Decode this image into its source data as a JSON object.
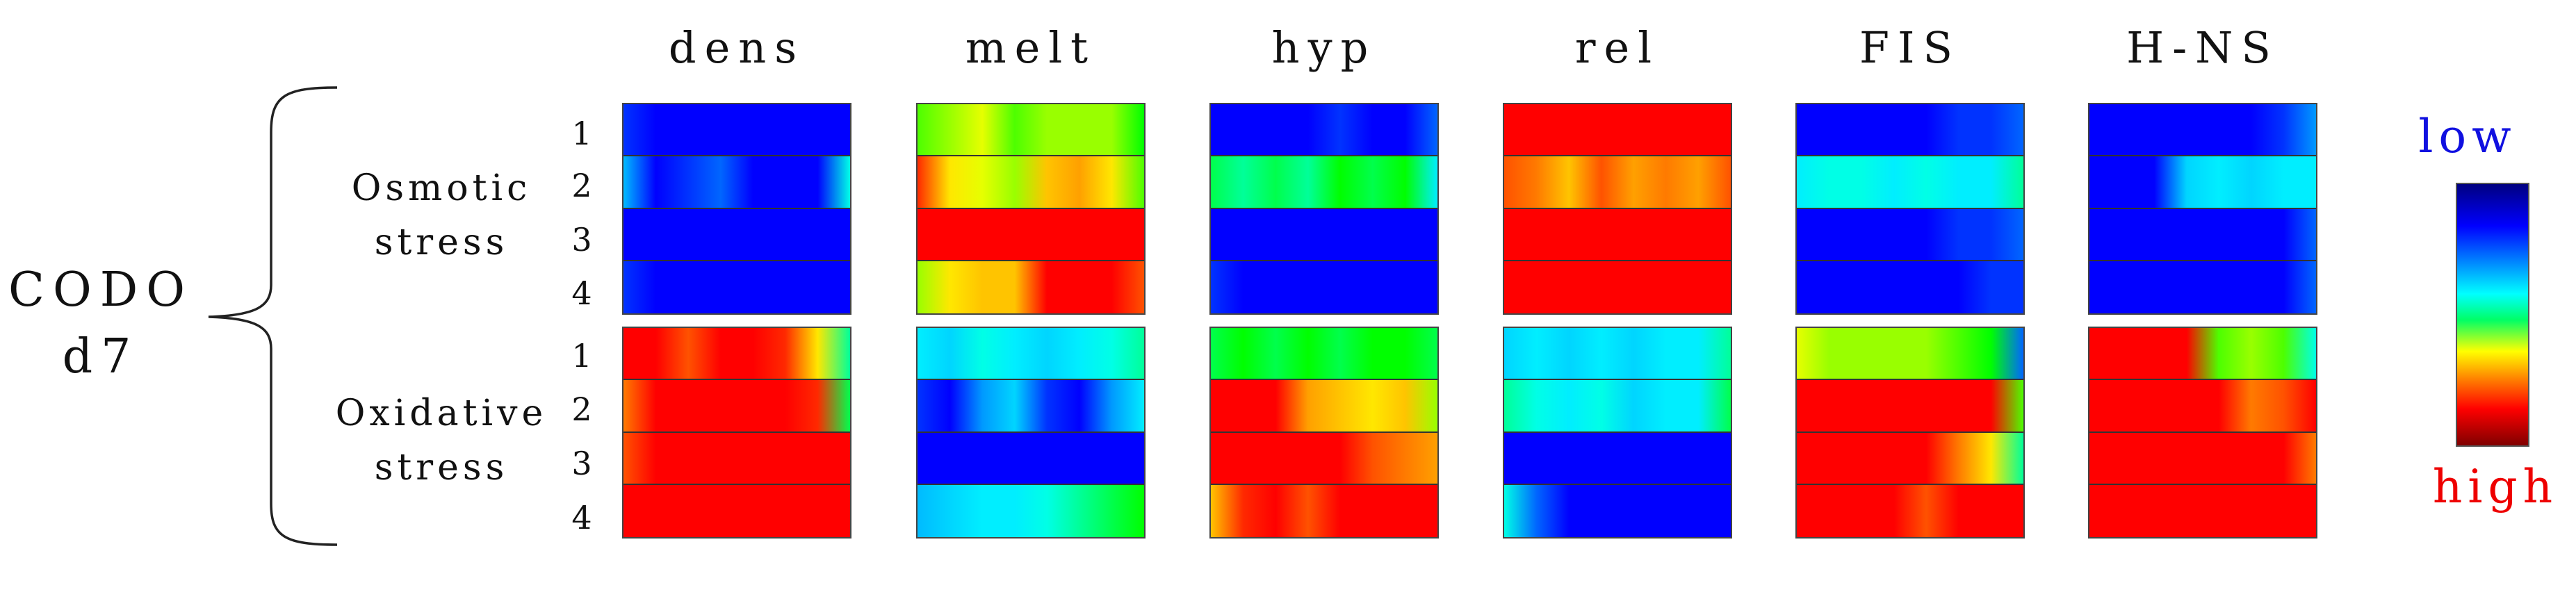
{
  "main_label": {
    "line1": "CODO",
    "line2": "d7"
  },
  "groups": [
    {
      "line1": "Osmotic",
      "line2": "stress"
    },
    {
      "line1": "Oxidative",
      "line2": "stress"
    }
  ],
  "row_indices": [
    "1",
    "2",
    "3",
    "4"
  ],
  "columns": [
    "dens",
    "melt",
    "hyp",
    "rel",
    "FIS",
    "H-NS"
  ],
  "legend": {
    "low": "low",
    "high": "high",
    "low_color": "#0000ff",
    "high_color": "#ff0000"
  },
  "colormap": [
    "#0000ff",
    "#00aaff",
    "#00ffff",
    "#00ff00",
    "#ffff00",
    "#ff8800",
    "#ff0000"
  ],
  "heatmap": {
    "note": "levels 0 (low/blue) to 1 (high/red), one array per strip, sampled left to right",
    "osmotic": [
      [
        [
          0.05,
          0.0,
          0.0,
          0.0,
          0.0,
          0.0,
          0.0,
          0.0
        ],
        [
          0.2,
          0.0,
          0.05,
          0.1,
          0.0,
          0.0,
          0.0,
          0.35
        ],
        [
          0.0,
          0.0,
          0.0,
          0.0,
          0.0,
          0.0,
          0.0,
          0.0
        ],
        [
          0.05,
          0.0,
          0.0,
          0.0,
          0.0,
          0.0,
          0.0,
          0.0
        ]
      ],
      [
        [
          0.55,
          0.6,
          0.65,
          0.55,
          0.6,
          0.6,
          0.6,
          0.5
        ],
        [
          0.95,
          0.7,
          0.65,
          0.6,
          0.75,
          0.8,
          0.7,
          0.55
        ],
        [
          1.0,
          1.0,
          1.0,
          1.0,
          1.0,
          1.0,
          1.0,
          1.0
        ],
        [
          0.6,
          0.7,
          0.75,
          0.75,
          1.0,
          1.0,
          1.0,
          0.9
        ]
      ],
      [
        [
          0.0,
          0.0,
          0.0,
          0.0,
          0.05,
          0.0,
          0.0,
          0.1
        ],
        [
          0.45,
          0.4,
          0.45,
          0.4,
          0.5,
          0.45,
          0.5,
          0.3
        ],
        [
          0.0,
          0.0,
          0.0,
          0.0,
          0.0,
          0.0,
          0.0,
          0.0
        ],
        [
          0.05,
          0.0,
          0.0,
          0.0,
          0.0,
          0.0,
          0.0,
          0.0
        ]
      ],
      [
        [
          1.0,
          1.0,
          1.0,
          1.0,
          1.0,
          1.0,
          1.0,
          1.0
        ],
        [
          0.9,
          0.85,
          0.75,
          0.9,
          0.8,
          0.85,
          0.8,
          0.9
        ],
        [
          1.0,
          1.0,
          1.0,
          1.0,
          1.0,
          1.0,
          1.0,
          1.0
        ],
        [
          1.0,
          1.0,
          1.0,
          1.0,
          1.0,
          1.0,
          1.0,
          1.0
        ]
      ],
      [
        [
          0.0,
          0.0,
          0.0,
          0.0,
          0.0,
          0.05,
          0.05,
          0.1
        ],
        [
          0.3,
          0.35,
          0.35,
          0.3,
          0.35,
          0.3,
          0.3,
          0.4
        ],
        [
          0.0,
          0.0,
          0.0,
          0.0,
          0.0,
          0.05,
          0.05,
          0.1
        ],
        [
          0.0,
          0.0,
          0.0,
          0.0,
          0.0,
          0.0,
          0.05,
          0.05
        ]
      ],
      [
        [
          0.0,
          0.0,
          0.0,
          0.0,
          0.0,
          0.0,
          0.05,
          0.15
        ],
        [
          0.0,
          0.0,
          0.0,
          0.25,
          0.3,
          0.25,
          0.3,
          0.3
        ],
        [
          0.0,
          0.0,
          0.0,
          0.0,
          0.0,
          0.0,
          0.0,
          0.1
        ],
        [
          0.0,
          0.0,
          0.0,
          0.0,
          0.0,
          0.0,
          0.0,
          0.1
        ]
      ]
    ],
    "oxidative": [
      [
        [
          1.0,
          1.0,
          0.9,
          1.0,
          1.0,
          0.95,
          0.7,
          0.4
        ],
        [
          0.85,
          1.0,
          1.0,
          1.0,
          1.0,
          1.0,
          0.95,
          0.45
        ],
        [
          0.9,
          1.0,
          1.0,
          1.0,
          1.0,
          1.0,
          1.0,
          1.0
        ],
        [
          1.0,
          1.0,
          1.0,
          1.0,
          1.0,
          1.0,
          1.0,
          1.0
        ]
      ],
      [
        [
          0.3,
          0.25,
          0.35,
          0.3,
          0.25,
          0.3,
          0.35,
          0.4
        ],
        [
          0.05,
          0.0,
          0.15,
          0.25,
          0.05,
          0.0,
          0.15,
          0.3
        ],
        [
          0.0,
          0.0,
          0.0,
          0.0,
          0.0,
          0.0,
          0.0,
          0.0
        ],
        [
          0.2,
          0.25,
          0.3,
          0.3,
          0.35,
          0.4,
          0.45,
          0.5
        ]
      ],
      [
        [
          0.45,
          0.5,
          0.45,
          0.5,
          0.45,
          0.5,
          0.5,
          0.45
        ],
        [
          1.0,
          1.0,
          1.0,
          0.8,
          0.75,
          0.7,
          0.75,
          0.6
        ],
        [
          1.0,
          1.0,
          1.0,
          1.0,
          1.0,
          0.9,
          0.85,
          0.8
        ],
        [
          0.75,
          0.95,
          1.0,
          0.9,
          1.0,
          1.0,
          1.0,
          1.0
        ]
      ],
      [
        [
          0.25,
          0.3,
          0.25,
          0.3,
          0.25,
          0.3,
          0.3,
          0.4
        ],
        [
          0.4,
          0.35,
          0.3,
          0.35,
          0.25,
          0.3,
          0.3,
          0.45
        ],
        [
          0.0,
          0.0,
          0.0,
          0.0,
          0.0,
          0.0,
          0.0,
          0.0
        ],
        [
          0.35,
          0.1,
          0.0,
          0.0,
          0.0,
          0.0,
          0.0,
          0.0
        ]
      ],
      [
        [
          0.65,
          0.6,
          0.6,
          0.6,
          0.6,
          0.55,
          0.5,
          0.1
        ],
        [
          1.0,
          1.0,
          1.0,
          1.0,
          1.0,
          1.0,
          1.0,
          0.55
        ],
        [
          1.0,
          1.0,
          1.0,
          1.0,
          1.0,
          0.85,
          0.7,
          0.4
        ],
        [
          1.0,
          1.0,
          1.0,
          1.0,
          0.9,
          1.0,
          1.0,
          1.0
        ]
      ],
      [
        [
          1.0,
          1.0,
          1.0,
          1.0,
          0.55,
          0.6,
          0.55,
          0.35
        ],
        [
          1.0,
          1.0,
          1.0,
          1.0,
          1.0,
          0.85,
          0.9,
          1.0
        ],
        [
          1.0,
          1.0,
          1.0,
          1.0,
          1.0,
          1.0,
          1.0,
          0.85
        ],
        [
          1.0,
          1.0,
          1.0,
          1.0,
          1.0,
          1.0,
          1.0,
          1.0
        ]
      ]
    ]
  }
}
